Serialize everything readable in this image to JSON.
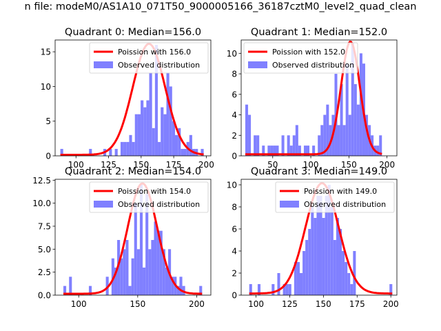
{
  "suptitle": "n file: modeM0/AS1A10_071T50_9000005166_36187cztM0_level2_quad_clean",
  "colors": {
    "poisson": "#ff0000",
    "observed": "#8080ff"
  },
  "chart_data": [
    {
      "type": "bar",
      "title": "Quadrant 0: Median=156.0",
      "legend": [
        "Poission with 156.0",
        "Observed distribution"
      ],
      "legend_position": "top-right",
      "xlim": [
        84,
        203.5
      ],
      "ylim": [
        0,
        16.7
      ],
      "xticks": [
        100,
        125,
        150,
        175,
        200
      ],
      "yticks": [
        0,
        5,
        10,
        15
      ],
      "ytick_labels": [
        "0",
        "5",
        "10",
        "15"
      ],
      "bin_start": 88,
      "bin_width": 2.2,
      "values": [
        1,
        0,
        0,
        0,
        0,
        0,
        0,
        0,
        0,
        0,
        1,
        0,
        0,
        0,
        0,
        1,
        0,
        1,
        0,
        1,
        0,
        2,
        2,
        2,
        3,
        2,
        6,
        6,
        8,
        7,
        8,
        12,
        4,
        16,
        2,
        7,
        6,
        12,
        10,
        5,
        3,
        4,
        1,
        1,
        2,
        3,
        1,
        1,
        0,
        1
      ],
      "poisson_mean": 156.0,
      "poisson_peak": 16.0
    },
    {
      "type": "bar",
      "title": "Quadrant 1: Median=152.0",
      "legend": [
        "Poission with 152.0",
        "Observed distribution"
      ],
      "legend_position": "top-left",
      "xlim": [
        8.6,
        213
      ],
      "ylim": [
        0,
        11.3
      ],
      "xticks": [
        50,
        100,
        150,
        200
      ],
      "yticks": [
        0,
        2,
        4,
        6,
        8,
        10
      ],
      "ytick_labels": [
        "0",
        "2",
        "4",
        "6",
        "8",
        "10"
      ],
      "bin_start": 14,
      "bin_width": 3.66,
      "values": [
        5,
        4,
        0,
        2,
        2,
        0,
        1,
        0,
        1,
        1,
        1,
        1,
        0,
        2,
        0,
        2,
        1,
        2,
        3,
        1,
        0,
        1,
        1,
        0,
        1,
        0,
        2,
        3,
        4,
        5,
        3,
        4,
        8,
        3,
        7,
        3,
        9,
        4,
        11,
        7,
        5,
        10,
        9,
        4,
        3,
        2,
        1,
        1,
        2
      ],
      "poisson_mean": 152.0,
      "poisson_peak": 11.0
    },
    {
      "type": "bar",
      "title": "Quadrant 2: Median=154.0",
      "legend": [
        "Poission with 154.0",
        "Observed distribution"
      ],
      "legend_position": "top-right",
      "xlim": [
        80,
        212
      ],
      "ylim": [
        0,
        12.6
      ],
      "xticks": [
        100,
        150,
        200
      ],
      "yticks": [
        0,
        2.5,
        5,
        7.5,
        10,
        12.5
      ],
      "ytick_labels": [
        "0.0",
        "2.5",
        "5.0",
        "7.5",
        "10.0",
        "12.5"
      ],
      "bin_start": 87,
      "bin_width": 2.4,
      "values": [
        1,
        0,
        2,
        0,
        0,
        0,
        0,
        0,
        0,
        1,
        0,
        0,
        0,
        0,
        0,
        2,
        0,
        4,
        3,
        6,
        4,
        5,
        6,
        1,
        4,
        10,
        5,
        12,
        3,
        11,
        5,
        6,
        8,
        7,
        7,
        5,
        3,
        5,
        2,
        2,
        1,
        2,
        1,
        0,
        0,
        0,
        0,
        0,
        1
      ],
      "poisson_mean": 154.0,
      "poisson_peak": 12.0
    },
    {
      "type": "bar",
      "title": "Quadrant 3: Median=149.0",
      "legend": [
        "Poission with 149.0",
        "Observed distribution"
      ],
      "legend_position": "top-right",
      "xlim": [
        89,
        204.5
      ],
      "ylim": [
        0,
        10.5
      ],
      "xticks": [
        100,
        125,
        150,
        175,
        200
      ],
      "yticks": [
        0,
        2,
        4,
        6,
        8,
        10
      ],
      "ytick_labels": [
        "0",
        "2",
        "4",
        "6",
        "8",
        "10"
      ],
      "bin_start": 95,
      "bin_width": 2.08,
      "values": [
        1,
        0,
        0,
        1,
        0,
        0,
        0,
        0,
        1,
        0,
        2,
        0,
        1,
        1,
        1,
        0,
        3,
        3,
        2,
        4,
        5,
        6,
        8,
        7,
        9,
        9,
        7,
        9,
        10,
        8,
        5,
        7,
        6,
        4,
        3,
        2,
        1,
        4,
        0,
        0,
        0,
        0,
        0,
        0,
        0,
        0,
        0,
        0,
        0,
        0,
        1
      ],
      "poisson_mean": 149.0,
      "poisson_peak": 10.0
    }
  ]
}
